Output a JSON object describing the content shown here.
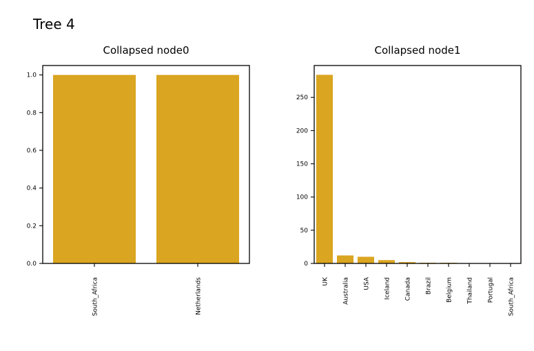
{
  "figure": {
    "title": "Tree 4"
  },
  "colors": {
    "bar": "#DAA520"
  },
  "chart_data": [
    {
      "type": "bar",
      "title": "Collapsed node0",
      "categories": [
        "South_Africa",
        "Netherlands"
      ],
      "values": [
        1.0,
        1.0
      ],
      "ylim": [
        0,
        1.05
      ],
      "yticks": [
        0.0,
        0.2,
        0.4,
        0.6,
        0.8,
        1.0
      ],
      "ytick_labels": [
        "0.0",
        "0.2",
        "0.4",
        "0.6",
        "0.8",
        "1.0"
      ],
      "xlabel": "",
      "ylabel": "",
      "grid": false
    },
    {
      "type": "bar",
      "title": "Collapsed node1",
      "categories": [
        "UK",
        "Australia",
        "USA",
        "Iceland",
        "Canada",
        "Brazil",
        "Belgium",
        "Thailand",
        "Portugal",
        "South_Africa"
      ],
      "values": [
        284,
        12,
        10,
        5,
        2,
        1,
        1,
        0.5,
        0.5,
        0.3
      ],
      "ylim": [
        0,
        298
      ],
      "yticks": [
        0,
        50,
        100,
        150,
        200,
        250
      ],
      "ytick_labels": [
        "0",
        "50",
        "100",
        "150",
        "200",
        "250"
      ],
      "xlabel": "",
      "ylabel": "",
      "grid": false
    }
  ]
}
